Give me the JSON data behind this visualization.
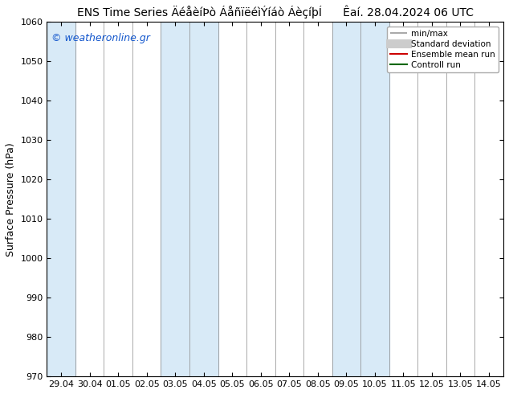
{
  "title_left": "ENS Time Series ÄéåèíÞò ÁåñïëéìÝíáò ÁèçíþÍ",
  "title_right": "Êaí. 28.04.2024 06 UTC",
  "ylabel": "Surface Pressure (hPa)",
  "ylim": [
    970,
    1060
  ],
  "ytick_step": 10,
  "x_labels": [
    "29.04",
    "30.04",
    "01.05",
    "02.05",
    "03.05",
    "04.05",
    "05.05",
    "06.05",
    "07.05",
    "08.05",
    "09.05",
    "10.05",
    "11.05",
    "12.05",
    "13.05",
    "14.05"
  ],
  "fig_bg_color": "#ffffff",
  "plot_bg_color": "#ffffff",
  "band_color": "#d8eaf7",
  "shaded_indices": [
    0,
    4,
    5,
    10,
    11
  ],
  "legend_items": [
    "min/max",
    "Standard deviation",
    "Ensemble mean run",
    "Controll run"
  ],
  "legend_line_colors": [
    "#aaaaaa",
    "#cccccc",
    "#cc0000",
    "#006600"
  ],
  "watermark": "© weatheronline.gr",
  "watermark_color": "#1155cc",
  "title_fontsize": 10,
  "axis_label_fontsize": 9,
  "tick_fontsize": 8,
  "legend_fontsize": 7.5
}
